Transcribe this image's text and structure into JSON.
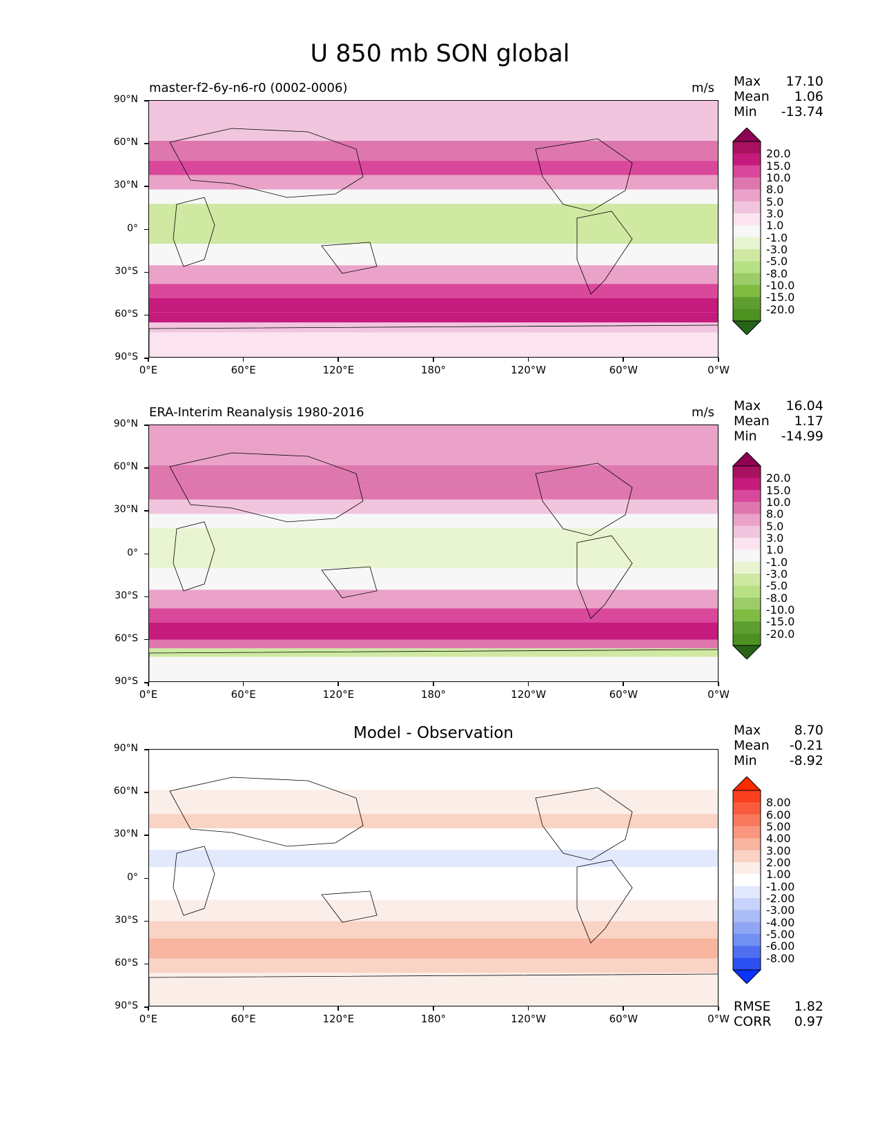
{
  "title": "U 850 mb SON global",
  "panels": [
    {
      "subtitle": "master-f2-6y-n6-r0 (0002-0006)",
      "units": "m/s",
      "stats": {
        "max_label": "Max",
        "max": "17.10",
        "mean_label": "Mean",
        "mean": "1.06",
        "min_label": "Min",
        "min": "-13.74"
      },
      "colorbar": {
        "levels": [
          "20.0",
          "15.0",
          "10.0",
          "8.0",
          "5.0",
          "3.0",
          "1.0",
          "-1.0",
          "-3.0",
          "-5.0",
          "-8.0",
          "-10.0",
          "-15.0",
          "-20.0"
        ],
        "colors": [
          "#8e0152",
          "#a8115f",
          "#c51b7d",
          "#d9489a",
          "#de77ae",
          "#eaa2c9",
          "#f1c5de",
          "#fbe4f0",
          "#f7f7f7",
          "#e8f5d0",
          "#cfe9a3",
          "#b8e186",
          "#9ccc68",
          "#7fbc41",
          "#5f9e30",
          "#4d9221",
          "#276419"
        ]
      },
      "map_data": {
        "type": "filled-contour",
        "bands": [
          {
            "lat": [
              90,
              62
            ],
            "value": 2
          },
          {
            "lat": [
              62,
              48
            ],
            "value": 6
          },
          {
            "lat": [
              48,
              38
            ],
            "value": 9
          },
          {
            "lat": [
              38,
              28
            ],
            "value": 4
          },
          {
            "lat": [
              28,
              18
            ],
            "value": -2
          },
          {
            "lat": [
              18,
              -10
            ],
            "value": -6
          },
          {
            "lat": [
              -10,
              -25
            ],
            "value": -2
          },
          {
            "lat": [
              -25,
              -38
            ],
            "value": 4
          },
          {
            "lat": [
              -38,
              -48
            ],
            "value": 9
          },
          {
            "lat": [
              -48,
              -58
            ],
            "value": 14
          },
          {
            "lat": [
              -58,
              -65
            ],
            "value": 10
          },
          {
            "lat": [
              -65,
              -72
            ],
            "value": 2
          },
          {
            "lat": [
              -72,
              -90
            ],
            "value": -1
          }
        ]
      }
    },
    {
      "subtitle": "ERA-Interim Reanalysis 1980-2016",
      "units": "m/s",
      "stats": {
        "max_label": "Max",
        "max": "16.04",
        "mean_label": "Mean",
        "mean": "1.17",
        "min_label": "Min",
        "min": "-14.99"
      },
      "colorbar": {
        "levels": [
          "20.0",
          "15.0",
          "10.0",
          "8.0",
          "5.0",
          "3.0",
          "1.0",
          "-1.0",
          "-3.0",
          "-5.0",
          "-8.0",
          "-10.0",
          "-15.0",
          "-20.0"
        ],
        "colors": [
          "#8e0152",
          "#a8115f",
          "#c51b7d",
          "#d9489a",
          "#de77ae",
          "#eaa2c9",
          "#f1c5de",
          "#fbe4f0",
          "#f7f7f7",
          "#e8f5d0",
          "#cfe9a3",
          "#b8e186",
          "#9ccc68",
          "#7fbc41",
          "#5f9e30",
          "#4d9221",
          "#276419"
        ]
      },
      "map_data": {
        "type": "filled-contour",
        "bands": [
          {
            "lat": [
              90,
              62
            ],
            "value": 3
          },
          {
            "lat": [
              62,
              48
            ],
            "value": 5
          },
          {
            "lat": [
              48,
              38
            ],
            "value": 7
          },
          {
            "lat": [
              38,
              28
            ],
            "value": 2
          },
          {
            "lat": [
              28,
              18
            ],
            "value": -3
          },
          {
            "lat": [
              18,
              -10
            ],
            "value": -5
          },
          {
            "lat": [
              -10,
              -25
            ],
            "value": -2
          },
          {
            "lat": [
              -25,
              -38
            ],
            "value": 3
          },
          {
            "lat": [
              -38,
              -48
            ],
            "value": 9
          },
          {
            "lat": [
              -48,
              -60
            ],
            "value": 13
          },
          {
            "lat": [
              -60,
              -66
            ],
            "value": 6
          },
          {
            "lat": [
              -66,
              -72
            ],
            "value": -6
          },
          {
            "lat": [
              -72,
              -90
            ],
            "value": -3
          }
        ]
      }
    },
    {
      "subtitle": "Model - Observation",
      "stats": {
        "max_label": "Max",
        "max": "8.70",
        "mean_label": "Mean",
        "mean": "-0.21",
        "min_label": "Min",
        "min": "-8.92"
      },
      "fit": {
        "rmse_label": "RMSE",
        "rmse": "1.82",
        "corr_label": "CORR",
        "corr": "0.97"
      },
      "colorbar": {
        "levels": [
          "8.00",
          "6.00",
          "5.00",
          "4.00",
          "3.00",
          "2.00",
          "1.00",
          "-1.00",
          "-2.00",
          "-3.00",
          "-4.00",
          "-5.00",
          "-6.00",
          "-8.00"
        ],
        "colors": [
          "#ff2a00",
          "#f8401e",
          "#f85c3c",
          "#f8795d",
          "#f8977e",
          "#f8b5a0",
          "#f9d3c3",
          "#fbeee8",
          "#ffffff",
          "#e3e9fc",
          "#c7d3fa",
          "#abbcf7",
          "#8fa6f4",
          "#728ff2",
          "#4f6ff0",
          "#2c4ff2",
          "#0933ff"
        ]
      },
      "map_data": {
        "type": "filled-contour",
        "bands": [
          {
            "lat": [
              90,
              62
            ],
            "value": -1.5
          },
          {
            "lat": [
              62,
              45
            ],
            "value": 0.5
          },
          {
            "lat": [
              45,
              35
            ],
            "value": 1.5
          },
          {
            "lat": [
              35,
              20
            ],
            "value": -1.5
          },
          {
            "lat": [
              20,
              8
            ],
            "value": -3
          },
          {
            "lat": [
              8,
              -15
            ],
            "value": -1.5
          },
          {
            "lat": [
              -15,
              -30
            ],
            "value": -1
          },
          {
            "lat": [
              -30,
              -42
            ],
            "value": 1.5
          },
          {
            "lat": [
              -42,
              -56
            ],
            "value": 2.5
          },
          {
            "lat": [
              -56,
              -66
            ],
            "value": 1
          },
          {
            "lat": [
              -66,
              -90
            ],
            "value": 0
          }
        ]
      }
    }
  ],
  "axes": {
    "lat_ticks": [
      "90°N",
      "60°N",
      "30°N",
      "0°",
      "30°S",
      "60°S",
      "90°S"
    ],
    "lon_ticks": [
      "0°E",
      "60°E",
      "120°E",
      "180°",
      "120°W",
      "60°W",
      "0°W"
    ]
  }
}
